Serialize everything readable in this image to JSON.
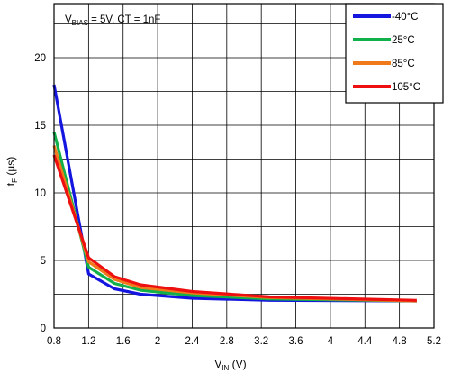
{
  "chart_data": {
    "type": "line",
    "title": "",
    "annotation": {
      "v_label": "V",
      "v_sub": "BIAS",
      "rest": " = 5V, CT = 1nF"
    },
    "xlabel": {
      "main": "V",
      "sub": "IN",
      "unit": " (V)"
    },
    "ylabel": {
      "main": "t",
      "sub": "F",
      "unit": " (µs)"
    },
    "xlim": [
      0.8,
      5.2
    ],
    "ylim": [
      0,
      24
    ],
    "xticks": [
      "0.8",
      "1.2",
      "1.6",
      "2",
      "2.4",
      "2.8",
      "3.2",
      "3.6",
      "4",
      "4.4",
      "4.8",
      "5.2"
    ],
    "yticks": [
      "0",
      "5",
      "10",
      "15",
      "20"
    ],
    "grid": true,
    "legend_position": "top-right",
    "series": [
      {
        "name": "-40°C",
        "color": "#1515e0",
        "x": [
          0.8,
          1.2,
          1.5,
          1.8,
          2.4,
          3.3,
          5.0
        ],
        "y": [
          18.0,
          4.0,
          2.9,
          2.5,
          2.2,
          2.05,
          2.0
        ]
      },
      {
        "name": "25°C",
        "color": "#12b04a",
        "x": [
          0.8,
          1.2,
          1.5,
          1.8,
          2.4,
          3.3,
          5.0
        ],
        "y": [
          14.5,
          4.5,
          3.3,
          2.8,
          2.4,
          2.15,
          2.0
        ]
      },
      {
        "name": "85°C",
        "color": "#f07a1a",
        "x": [
          0.8,
          1.2,
          1.5,
          1.8,
          2.4,
          3.3,
          5.0
        ],
        "y": [
          13.5,
          4.9,
          3.6,
          3.0,
          2.6,
          2.25,
          2.0
        ]
      },
      {
        "name": "105°C",
        "color": "#ee1010",
        "x": [
          0.8,
          1.2,
          1.5,
          1.8,
          2.4,
          3.3,
          5.0
        ],
        "y": [
          12.8,
          5.2,
          3.8,
          3.2,
          2.7,
          2.3,
          2.05
        ]
      }
    ]
  }
}
